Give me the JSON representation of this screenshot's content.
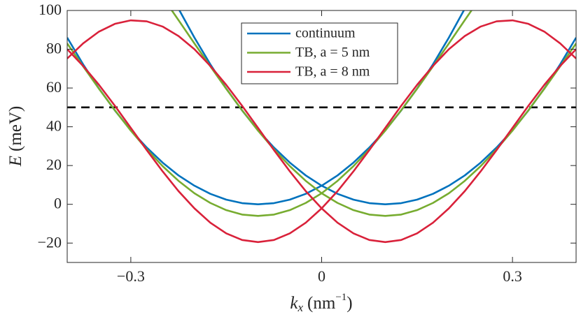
{
  "chart_data": {
    "type": "line",
    "xlabel": {
      "var": "k",
      "sub": "x",
      "unit": "(nm",
      "sup": "−1",
      "close": ")"
    },
    "ylabel": {
      "var": "E",
      "unit": "(meV)"
    },
    "x": [
      -0.4,
      -0.375,
      -0.35,
      -0.325,
      -0.3,
      -0.275,
      -0.25,
      -0.225,
      -0.2,
      -0.175,
      -0.15,
      -0.125,
      -0.1,
      -0.075,
      -0.05,
      -0.025,
      0,
      0.025,
      0.05,
      0.075,
      0.1,
      0.125,
      0.15,
      0.175,
      0.2,
      0.225,
      0.25,
      0.275,
      0.3,
      0.325,
      0.35,
      0.375,
      0.4
    ],
    "series": [
      {
        "name": "continuum",
        "color": "#0072bd",
        "branches": [
          [
            86.0,
            72.2,
            59.7,
            48.4,
            38.2,
            29.3,
            21.5,
            14.9,
            9.6,
            5.4,
            2.4,
            0.6,
            0,
            0.6,
            2.4,
            5.4,
            9.6,
            14.9,
            21.5,
            29.3,
            38.2,
            48.4,
            59.7,
            72.2,
            86.0,
            100.9,
            117.0,
            null,
            null,
            null,
            null,
            null,
            null
          ],
          [
            null,
            null,
            null,
            null,
            null,
            null,
            117.0,
            100.9,
            86.0,
            72.2,
            59.7,
            48.4,
            38.2,
            29.3,
            21.5,
            14.9,
            9.6,
            5.4,
            2.4,
            0.6,
            0,
            0.6,
            2.4,
            5.4,
            9.6,
            14.9,
            21.5,
            29.3,
            38.2,
            48.4,
            59.7,
            72.2,
            86.0
          ]
        ]
      },
      {
        "name": "TB, a = 5 nm",
        "color": "#77ac30",
        "branches": [
          [
            83.0,
            71.2,
            59.6,
            48.5,
            38.0,
            28.4,
            19.7,
            12.1,
            5.7,
            0.7,
            -3.0,
            -5.3,
            -6,
            -5.3,
            -3.0,
            0.7,
            5.7,
            12.1,
            19.7,
            28.4,
            38.0,
            48.5,
            59.6,
            71.2,
            83.0,
            95.0,
            106.9,
            null,
            null,
            null,
            null,
            null,
            null
          ],
          [
            null,
            null,
            null,
            null,
            null,
            null,
            106.9,
            95.0,
            83.0,
            71.2,
            59.6,
            48.5,
            38.0,
            28.4,
            19.7,
            12.1,
            5.7,
            0.7,
            -3.0,
            -5.3,
            -6,
            -5.3,
            -3.0,
            0.7,
            5.7,
            12.1,
            19.7,
            28.4,
            38.0,
            48.5,
            59.6,
            71.2,
            83.0
          ]
        ]
      },
      {
        "name": "TB, a = 8 nm",
        "color": "#d9213a",
        "branches": [
          [
            80.0,
            71.4,
            61.6,
            50.8,
            39.4,
            28.0,
            17.0,
            6.8,
            -2.1,
            -9.5,
            -15.0,
            -18.4,
            -19.5,
            -18.4,
            -15.0,
            -9.5,
            -2.1,
            6.8,
            17.0,
            28.0,
            39.4,
            50.8,
            61.6,
            71.4,
            80.0,
            86.8,
            91.7,
            94.4,
            94.9,
            93.1,
            89.1,
            83.0,
            75.2
          ],
          [
            75.2,
            83.0,
            89.1,
            93.1,
            94.9,
            94.4,
            91.7,
            86.8,
            80.0,
            71.4,
            61.6,
            50.8,
            39.4,
            28.0,
            17.0,
            6.8,
            -2.1,
            -9.5,
            -15.0,
            -18.4,
            -19.5,
            -18.4,
            -15.0,
            -9.5,
            -2.1,
            6.8,
            17.0,
            28.0,
            39.4,
            50.8,
            61.6,
            71.4,
            80.0
          ]
        ]
      }
    ],
    "hline": {
      "value": 50,
      "color": "#000000",
      "dashed": true
    },
    "xlim": [
      -0.4,
      0.4
    ],
    "xticks": [
      {
        "value": -0.3,
        "label": "−0.3"
      },
      0,
      0.3
    ],
    "ylim": [
      -30,
      100
    ],
    "yticks": [
      {
        "value": -20,
        "label": "−20"
      },
      0,
      20,
      40,
      60,
      80,
      100
    ],
    "grid": false,
    "legend": "top"
  }
}
